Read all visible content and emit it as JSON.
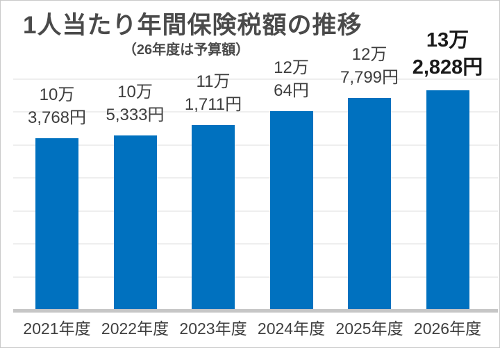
{
  "title": "1人当たり年間保険税額の推移",
  "subtitle": "（26年度は予算額）",
  "colors": {
    "bar": "#0071bf",
    "title_text": "#4a4a4a",
    "value_label_text": "#3d3d3d",
    "emphasis_label_text": "#1a1a1a",
    "axis_line": "#c6c6c6",
    "gridline": "#eeeeee",
    "border": "#c9c9c9",
    "background": "#ffffff"
  },
  "chart_data": {
    "type": "bar",
    "title": "1人当たり年間保険税額の推移",
    "subtitle": "（26年度は予算額）",
    "categories": [
      "2021年度",
      "2022年度",
      "2023年度",
      "2024年度",
      "2025年度",
      "2026年度"
    ],
    "values": [
      103768,
      105333,
      111711,
      120064,
      127799,
      132828
    ],
    "value_labels": [
      [
        "10万",
        "3,768円"
      ],
      [
        "10万",
        "5,333円"
      ],
      [
        "11万",
        "1,711円"
      ],
      [
        "12万",
        "64円"
      ],
      [
        "12万",
        "7,799円"
      ],
      [
        "13万",
        "2,828円"
      ]
    ],
    "emphasized_index": 5,
    "unit": "円",
    "xlabel": "",
    "ylabel": "",
    "ylim": [
      0,
      160000
    ],
    "gridline_interval": 20000,
    "grid": true,
    "legend": false,
    "y_axis_labels_visible": false
  }
}
